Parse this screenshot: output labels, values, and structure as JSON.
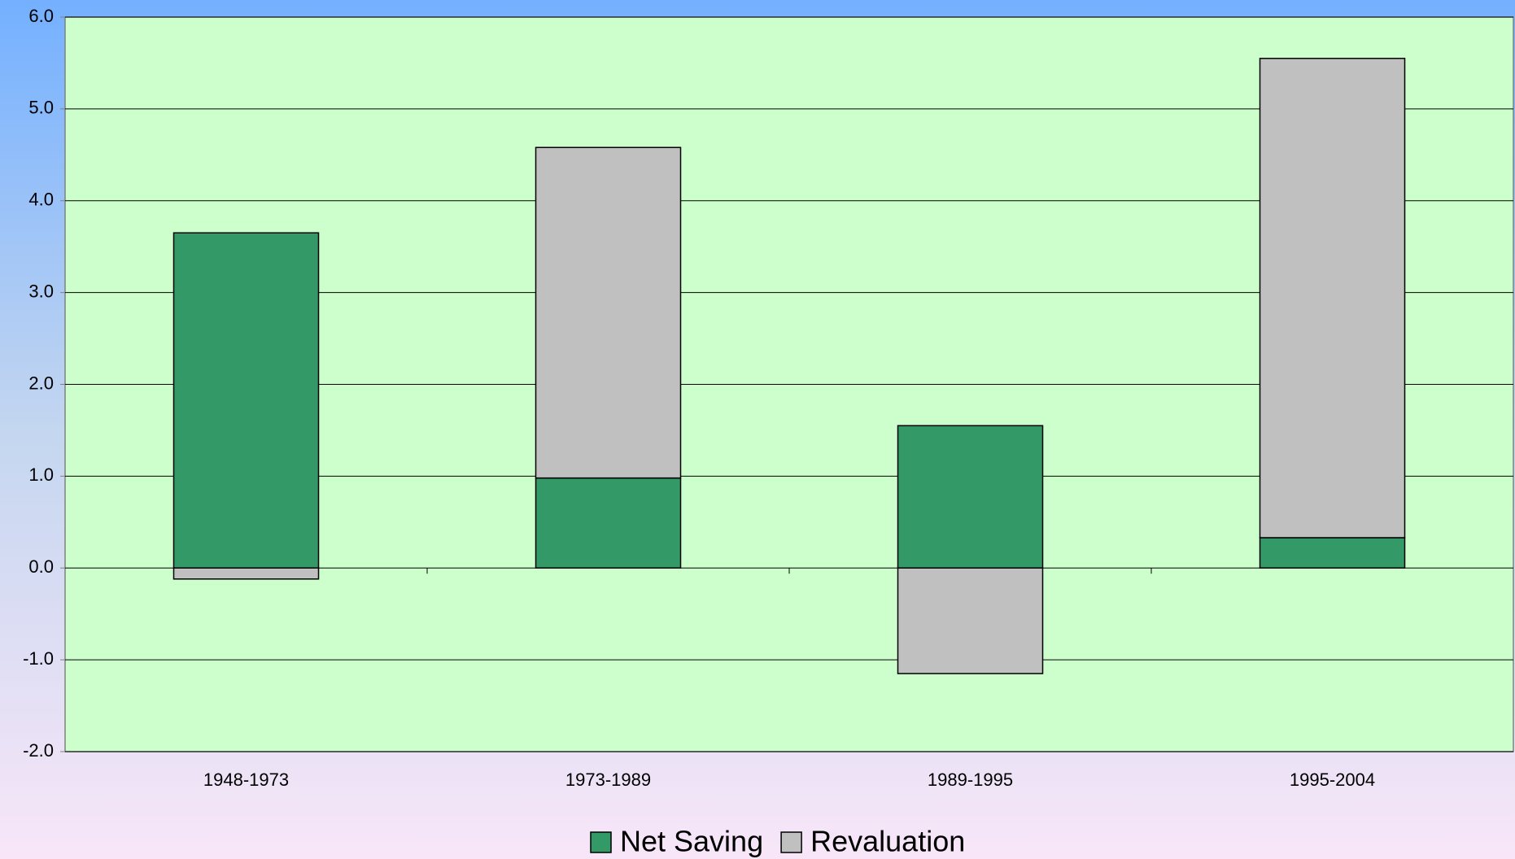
{
  "chart_data": {
    "type": "stacked-bar",
    "categories": [
      "1948-1973",
      "1973-1989",
      "1989-1995",
      "1995-2004"
    ],
    "series": [
      {
        "name": "Net Saving",
        "color": "#339966",
        "values": [
          3.65,
          0.98,
          1.55,
          0.33
        ]
      },
      {
        "name": "Revaluation",
        "color": "#c0c0c0",
        "values": [
          -0.12,
          3.6,
          -1.15,
          5.22
        ]
      }
    ],
    "ylim": [
      -2,
      6
    ],
    "yticks": [
      {
        "value": -2,
        "label": "-2.0"
      },
      {
        "value": -1,
        "label": "-1.0"
      },
      {
        "value": 0,
        "label": "0.0"
      },
      {
        "value": 1,
        "label": "1.0"
      },
      {
        "value": 2,
        "label": "2.0"
      },
      {
        "value": 3,
        "label": "3.0"
      },
      {
        "value": 4,
        "label": "4.0"
      },
      {
        "value": 5,
        "label": "5.0"
      },
      {
        "value": 6,
        "label": "6.0"
      }
    ],
    "grid": true,
    "legend": "bottom"
  }
}
